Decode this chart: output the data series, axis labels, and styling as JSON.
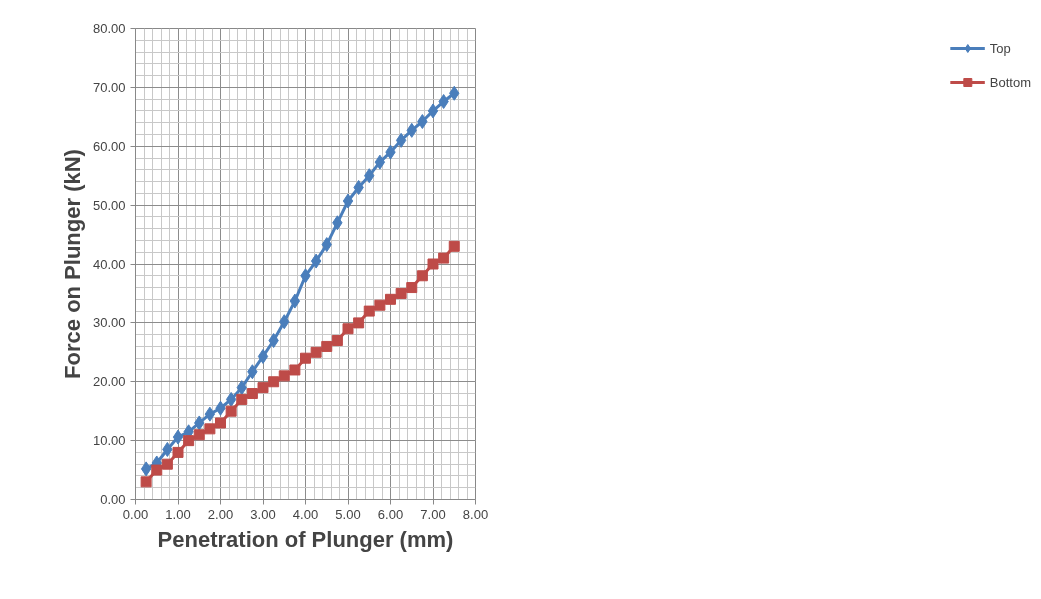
{
  "chart_data": {
    "type": "line",
    "xlabel": "Penetration of Plunger (mm)",
    "ylabel": "Force on Plunger (kN)",
    "x": [
      0.25,
      0.5,
      0.75,
      1.0,
      1.25,
      1.5,
      1.75,
      2.0,
      2.25,
      2.5,
      2.75,
      3.0,
      3.25,
      3.5,
      3.75,
      4.0,
      4.25,
      4.5,
      4.75,
      5.0,
      5.25,
      5.5,
      5.75,
      6.0,
      6.25,
      6.5,
      6.75,
      7.0,
      7.25,
      7.5
    ],
    "series": [
      {
        "name": "Top",
        "color": "#4a7ebb",
        "marker": "diamond",
        "values": [
          5.2,
          6.2,
          8.5,
          10.6,
          11.5,
          13,
          14.5,
          15.5,
          17,
          19,
          21.7,
          24.3,
          27,
          30.2,
          33.7,
          38,
          40.5,
          43.3,
          47,
          50.7,
          53,
          55,
          57.3,
          59,
          61,
          62.7,
          64.2,
          66,
          67.6,
          69
        ]
      },
      {
        "name": "Bottom",
        "color": "#be4b48",
        "marker": "square",
        "values": [
          3,
          5,
          6,
          8,
          10,
          11,
          12,
          13,
          15,
          17,
          18,
          19,
          20,
          21,
          22,
          24,
          25,
          26,
          27,
          29,
          30,
          32,
          33,
          34,
          35,
          36,
          38,
          40,
          41,
          43
        ]
      }
    ],
    "xlim": [
      0,
      8
    ],
    "ylim": [
      0,
      80
    ],
    "xticks": [
      {
        "value": 0,
        "label": "0.00"
      },
      {
        "value": 1,
        "label": "1.00"
      },
      {
        "value": 2,
        "label": "2.00"
      },
      {
        "value": 3,
        "label": "3.00"
      },
      {
        "value": 4,
        "label": "4.00"
      },
      {
        "value": 5,
        "label": "5.00"
      },
      {
        "value": 6,
        "label": "6.00"
      },
      {
        "value": 7,
        "label": "7.00"
      },
      {
        "value": 8,
        "label": "8.00"
      }
    ],
    "yticks": [
      {
        "value": 0,
        "label": "0.00"
      },
      {
        "value": 10,
        "label": "10.00"
      },
      {
        "value": 20,
        "label": "20.00"
      },
      {
        "value": 30,
        "label": "30.00"
      },
      {
        "value": 40,
        "label": "40.00"
      },
      {
        "value": 50,
        "label": "50.00"
      },
      {
        "value": 60,
        "label": "60.00"
      },
      {
        "value": 70,
        "label": "70.00"
      },
      {
        "value": 80,
        "label": "80.00"
      }
    ],
    "grid": true,
    "legend": "right",
    "line_style": "solid"
  }
}
